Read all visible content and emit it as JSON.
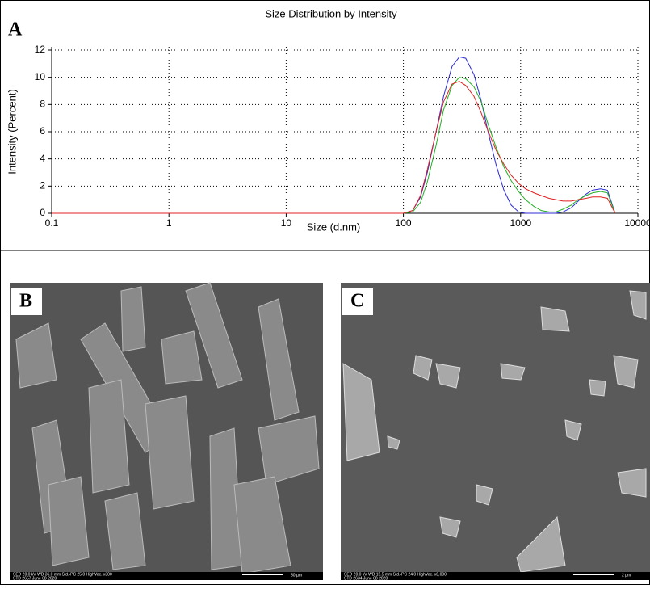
{
  "chart_data": {
    "type": "line",
    "title": "Size Distribution by Intensity",
    "x_label": "Size (d.nm)",
    "y_label": "Intensity (Percent)",
    "xscale": "log",
    "xlim": [
      0.1,
      10000
    ],
    "xticks": [
      0.1,
      1,
      10,
      100,
      1000,
      10000
    ],
    "ylim": [
      0,
      12
    ],
    "yticks": [
      0,
      2,
      4,
      6,
      8,
      10,
      12
    ],
    "grid": true,
    "x": [
      0.1,
      100,
      120,
      140,
      160,
      190,
      220,
      260,
      300,
      340,
      400,
      460,
      530,
      620,
      720,
      830,
      960,
      1100,
      1300,
      1500,
      1750,
      2000,
      2300,
      2700,
      3100,
      3600,
      4100,
      4800,
      5500,
      6400
    ],
    "series": [
      {
        "color": "#2b2bd6",
        "values": [
          0,
          0,
          0.2,
          1.2,
          3,
          6,
          8.6,
          10.8,
          11.5,
          11.4,
          10.2,
          8.3,
          5.9,
          3.5,
          1.7,
          0.6,
          0.1,
          0,
          0,
          0,
          0,
          0,
          0.1,
          0.4,
          0.9,
          1.4,
          1.7,
          1.8,
          1.7,
          0
        ]
      },
      {
        "color": "#20b020",
        "values": [
          0,
          0,
          0.1,
          0.8,
          2.3,
          5,
          7.6,
          9.4,
          10,
          9.9,
          9.3,
          8.2,
          6.5,
          4.8,
          3.4,
          2.4,
          1.6,
          1,
          0.5,
          0.2,
          0.1,
          0.1,
          0.3,
          0.6,
          1,
          1.3,
          1.5,
          1.6,
          1.5,
          0
        ]
      },
      {
        "color": "#e02020",
        "values": [
          0,
          0,
          0.2,
          1.3,
          3.2,
          6,
          8.2,
          9.5,
          9.7,
          9.4,
          8.6,
          7.4,
          6,
          4.6,
          3.6,
          2.8,
          2.2,
          1.8,
          1.5,
          1.3,
          1.1,
          1,
          0.9,
          0.9,
          1,
          1.1,
          1.2,
          1.2,
          1.1,
          0
        ]
      }
    ]
  },
  "panel_labels": [
    "A",
    "B",
    "C"
  ],
  "micrographs": [
    {
      "info_line1": "SED 20.0 kV WD 36.0 mm Std.-PC 25.0 HighVac. x300",
      "info_line2": "STD 2657 June 08 2020",
      "scale": "50 µm"
    },
    {
      "info_line1": "SED 20.0 kV WD 15.5 mm Std.-PC 24.0 HighVac. x8,000",
      "info_line2": "STD 2634 June 08 2020",
      "scale": "2 µm"
    }
  ]
}
